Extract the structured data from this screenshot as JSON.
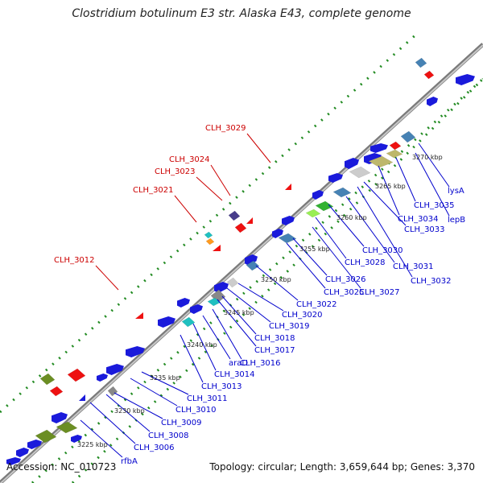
{
  "title": "Clostridium botulinum E3 str. Alaska E43, complete genome",
  "footer": {
    "accession": "Accession: NC_010723",
    "summary": "Topology: circular; Length: 3,659,644 bp; Genes: 3,370"
  },
  "colors": {
    "forward_label": "#cc0000",
    "reverse_label": "#0000cc",
    "backbone": "#999999",
    "tick_dots": "#228b22",
    "gene_blue": "#1a1adb",
    "gene_red": "#ee1111",
    "gene_olive": "#6b8e23",
    "gene_steelblue": "#4682b4",
    "gene_cyan": "#20c0c0",
    "gene_khaki": "#bdb76b",
    "gene_gray": "#888888"
  },
  "kbp_labels": [
    "3225 kbp",
    "3230 kbp",
    "3235 kbp",
    "3240 kbp",
    "3245 kbp",
    "3250 kbp",
    "3255 kbp",
    "3260 kbp",
    "3265 kbp",
    "3270 kbp"
  ],
  "forward_gene_labels": [
    "CLH_3012",
    "CLH_3021",
    "CLH_3023",
    "CLH_3024",
    "CLH_3029"
  ],
  "reverse_gene_labels": [
    "rfbA",
    "CLH_3006",
    "CLH_3008",
    "CLH_3009",
    "CLH_3010",
    "CLH_3011",
    "CLH_3013",
    "CLH_3014",
    "araD",
    "CLH_3016",
    "CLH_3017",
    "CLH_3018",
    "CLH_3019",
    "CLH_3020",
    "CLH_3022",
    "CLH_3025",
    "CLH_3026",
    "CLH_3027",
    "CLH_3028",
    "CLH_3030",
    "CLH_3031",
    "CLH_3032",
    "CLH_3033",
    "CLH_3034",
    "CLH_3035",
    "lepB",
    "lysA"
  ]
}
